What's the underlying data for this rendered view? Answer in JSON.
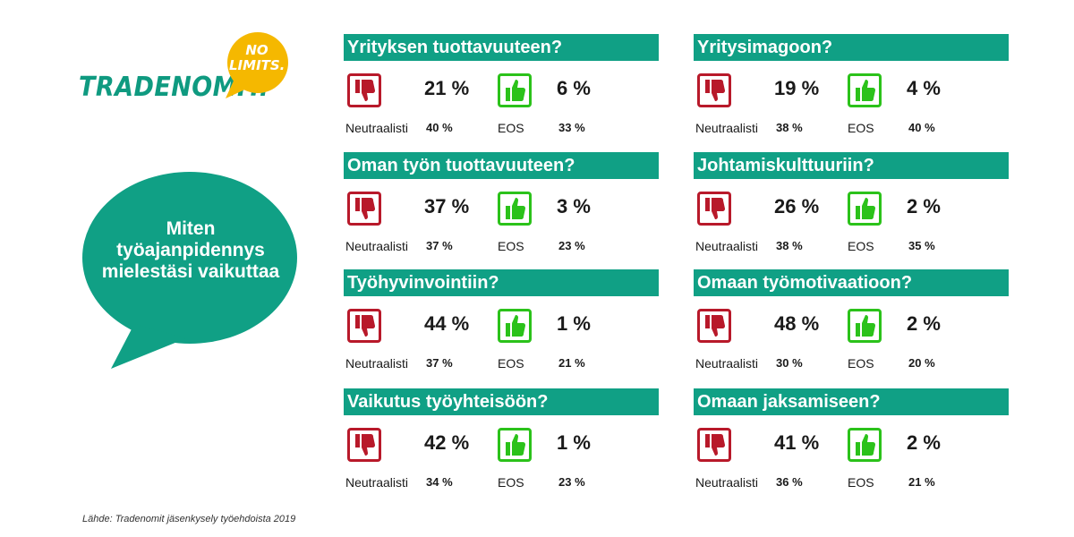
{
  "logo": {
    "brand": "TRADENOMIT.",
    "tagline": "NO LIMITS."
  },
  "question": "Miten työajanpidennys mielestäsi vaikuttaa",
  "source": "Lähde: Tradenomit jäsenkysely työehdoista 2019",
  "colors": {
    "teal": "#10a085",
    "negative": "#b8192a",
    "positive": "#2bc21a",
    "logo_bubble": "#f5b800"
  },
  "icons": {
    "negative": "thumbs-down-icon",
    "positive": "thumbs-up-icon"
  },
  "labels": {
    "neutral": "Neutraalisti",
    "eos": "EOS"
  },
  "chart_data": {
    "type": "table",
    "columns": [
      "Negatiivisesti",
      "Positiivisesti",
      "Neutraalisti",
      "EOS"
    ],
    "rows": [
      {
        "title": "Yrityksen tuottavuuteen?",
        "negative": "21 %",
        "positive": "6 %",
        "neutral": "40 %",
        "eos": "33 %"
      },
      {
        "title": "Yritysimagoon?",
        "negative": "19 %",
        "positive": "4 %",
        "neutral": "38 %",
        "eos": "40 %"
      },
      {
        "title": "Oman työn tuottavuuteen?",
        "negative": "37 %",
        "positive": "3 %",
        "neutral": "37 %",
        "eos": "23 %"
      },
      {
        "title": "Johtamiskulttuuriin?",
        "negative": "26 %",
        "positive": "2 %",
        "neutral": "38 %",
        "eos": "35 %"
      },
      {
        "title": "Työhyvinvointiin?",
        "negative": "44 %",
        "positive": "1 %",
        "neutral": "37 %",
        "eos": "21 %"
      },
      {
        "title": "Omaan työmotivaatioon?",
        "negative": "48 %",
        "positive": "2 %",
        "neutral": "30 %",
        "eos": "20 %"
      },
      {
        "title": "Vaikutus työyhteisöön?",
        "negative": "42 %",
        "positive": "1 %",
        "neutral": "34 %",
        "eos": "23 %"
      },
      {
        "title": "Omaan jaksamiseen?",
        "negative": "41 %",
        "positive": "2 %",
        "neutral": "36 %",
        "eos": "21 %"
      }
    ]
  }
}
